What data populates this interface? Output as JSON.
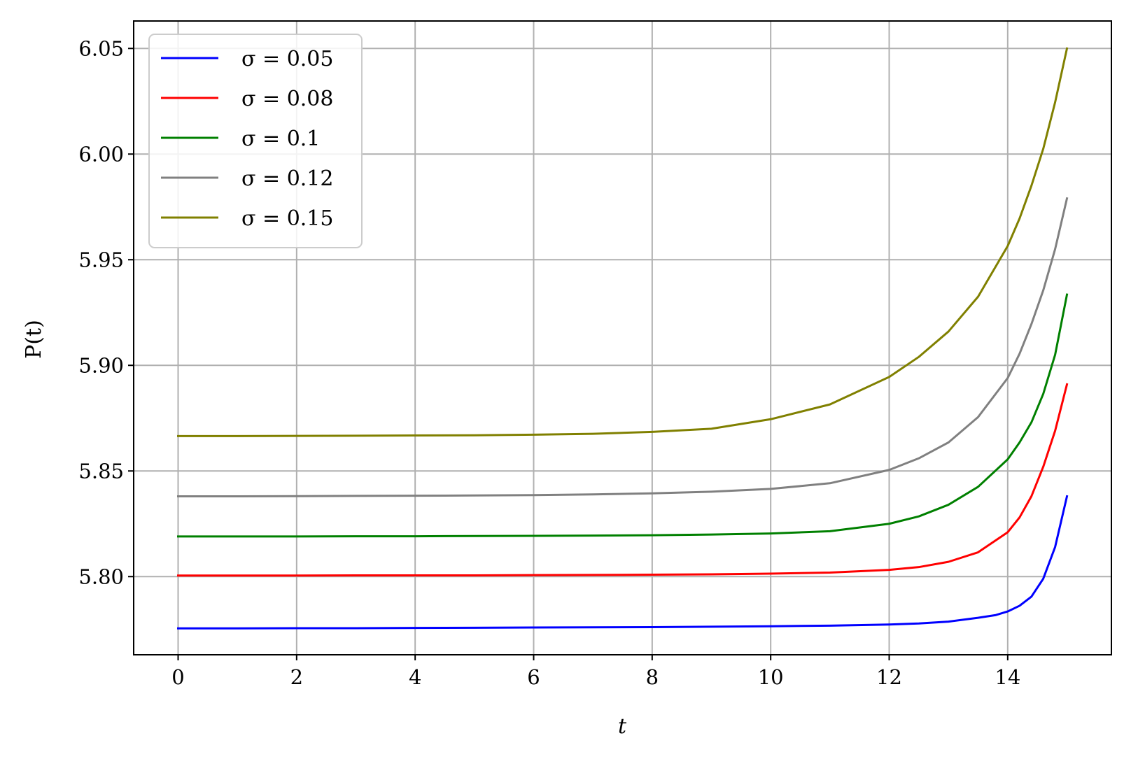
{
  "chart_data": {
    "type": "line",
    "title": "",
    "xlabel": "t",
    "ylabel": "P(t)",
    "xlim": [
      -0.75,
      15.75
    ],
    "ylim": [
      5.763,
      6.063
    ],
    "xticks": [
      0,
      2,
      4,
      6,
      8,
      10,
      12,
      14
    ],
    "xtick_labels": [
      "0",
      "2",
      "4",
      "6",
      "8",
      "10",
      "12",
      "14"
    ],
    "yticks": [
      5.8,
      5.85,
      5.9,
      5.95,
      6.0,
      6.05
    ],
    "ytick_labels": [
      "5.80",
      "5.85",
      "5.90",
      "5.95",
      "6.00",
      "6.05"
    ],
    "grid": true,
    "legend_position": "top-left",
    "series": [
      {
        "name": "σ = 0.05",
        "color": "#0000ff",
        "x": [
          0,
          1,
          2,
          3,
          4,
          5,
          6,
          7,
          8,
          9,
          10,
          11,
          12,
          12.5,
          13,
          13.5,
          13.8,
          14,
          14.2,
          14.4,
          14.6,
          14.8,
          15
        ],
        "y": [
          5.7755,
          5.7755,
          5.7756,
          5.7756,
          5.7757,
          5.7758,
          5.7759,
          5.776,
          5.7761,
          5.7763,
          5.7765,
          5.7768,
          5.7773,
          5.7778,
          5.7787,
          5.7805,
          5.7818,
          5.7835,
          5.7862,
          5.7905,
          5.799,
          5.814,
          5.838
        ]
      },
      {
        "name": "σ = 0.08",
        "color": "#ff0000",
        "x": [
          0,
          1,
          2,
          3,
          4,
          5,
          6,
          7,
          8,
          9,
          10,
          11,
          12,
          12.5,
          13,
          13.5,
          14,
          14.2,
          14.4,
          14.6,
          14.8,
          15
        ],
        "y": [
          5.8005,
          5.8005,
          5.8005,
          5.8006,
          5.8006,
          5.8006,
          5.8007,
          5.8008,
          5.8009,
          5.8011,
          5.8014,
          5.8019,
          5.8032,
          5.8045,
          5.807,
          5.8115,
          5.821,
          5.828,
          5.838,
          5.852,
          5.869,
          5.891
        ]
      },
      {
        "name": "σ = 0.1",
        "color": "#008000",
        "x": [
          0,
          1,
          2,
          3,
          4,
          5,
          6,
          7,
          8,
          9,
          10,
          11,
          12,
          12.5,
          13,
          13.5,
          14,
          14.2,
          14.4,
          14.6,
          14.8,
          15
        ],
        "y": [
          5.819,
          5.819,
          5.819,
          5.8191,
          5.8191,
          5.8192,
          5.8193,
          5.8194,
          5.8196,
          5.8199,
          5.8204,
          5.8215,
          5.825,
          5.8285,
          5.834,
          5.8425,
          5.8555,
          5.8635,
          5.873,
          5.8865,
          5.905,
          5.9335
        ]
      },
      {
        "name": "σ = 0.12",
        "color": "#808080",
        "x": [
          0,
          1,
          2,
          3,
          4,
          5,
          6,
          7,
          8,
          9,
          10,
          11,
          12,
          12.5,
          13,
          13.5,
          14,
          14.2,
          14.4,
          14.6,
          14.8,
          15
        ],
        "y": [
          5.838,
          5.838,
          5.8381,
          5.8382,
          5.8383,
          5.8384,
          5.8386,
          5.8389,
          5.8394,
          5.8402,
          5.8415,
          5.8442,
          5.8505,
          5.856,
          5.8635,
          5.8755,
          5.894,
          5.9055,
          5.9195,
          5.9355,
          5.955,
          5.979
        ]
      },
      {
        "name": "σ = 0.15",
        "color": "#808000",
        "x": [
          0,
          1,
          2,
          3,
          4,
          5,
          6,
          7,
          8,
          9,
          10,
          11,
          12,
          12.5,
          13,
          13.5,
          14,
          14.2,
          14.4,
          14.6,
          14.8,
          15
        ],
        "y": [
          5.8665,
          5.8665,
          5.8666,
          5.8667,
          5.8668,
          5.8669,
          5.8672,
          5.8676,
          5.8685,
          5.87,
          5.8745,
          5.8815,
          5.8945,
          5.904,
          5.916,
          5.9325,
          5.9565,
          5.9695,
          5.985,
          6.0025,
          6.0245,
          6.05
        ]
      }
    ]
  }
}
